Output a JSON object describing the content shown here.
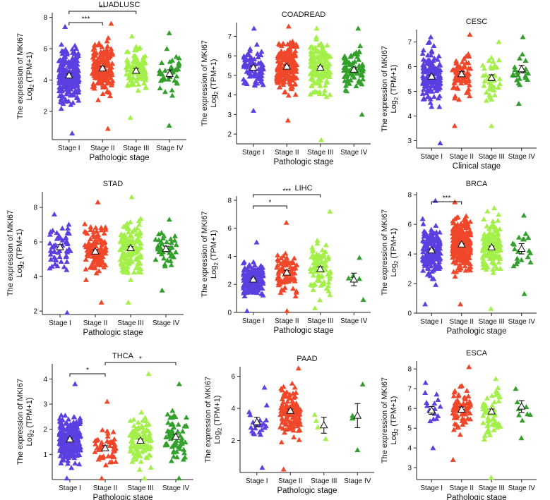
{
  "figure": {
    "stage_colors": [
      "#5b3fe0",
      "#f0472a",
      "#a4f04a",
      "#33a02c"
    ],
    "mean_marker_color": "#ffffff"
  },
  "chart_data": [
    {
      "type": "scatter",
      "title": "LUADLUSC",
      "xlabel": "Pathologic stage",
      "ylabel_main": "The expression of MKI67",
      "ylabel_sub_prefix": "Log",
      "ylabel_sub_index": "2",
      "ylabel_sub_suffix": " (TPM+1)",
      "categories": [
        "Stage I",
        "Stage II",
        "Stage III",
        "Stage IV"
      ],
      "ylim": [
        0.2,
        8.3
      ],
      "yticks": [
        2,
        4,
        6,
        8
      ],
      "n": [
        260,
        170,
        110,
        40
      ],
      "ranges": [
        [
          0.6,
          7.4
        ],
        [
          0.9,
          7.6
        ],
        [
          1.6,
          6.8
        ],
        [
          1.1,
          7.0
        ]
      ],
      "means": [
        4.3,
        4.75,
        4.6,
        4.4
      ],
      "errors": [
        0.1,
        0.12,
        0.15,
        0.25
      ],
      "significance": [
        {
          "from": 0,
          "to": 1,
          "label": "***",
          "level": 0
        },
        {
          "from": 0,
          "to": 2,
          "label": "**",
          "level": 1
        }
      ]
    },
    {
      "type": "scatter",
      "title": "COADREAD",
      "xlabel": "Pathologic stage",
      "ylabel_main": "The expression of MKI67",
      "ylabel_sub_prefix": "Log",
      "ylabel_sub_index": "2",
      "ylabel_sub_suffix": " (TPM+1)",
      "categories": [
        "Stage I",
        "Stage II",
        "Stage III",
        "Stage IV"
      ],
      "ylim": [
        1.5,
        7.7
      ],
      "yticks": [
        2,
        3,
        4,
        5,
        6,
        7
      ],
      "n": [
        90,
        200,
        150,
        80
      ],
      "ranges": [
        [
          3.2,
          7.4
        ],
        [
          2.7,
          7.5
        ],
        [
          1.7,
          7.4
        ],
        [
          3.0,
          7.4
        ]
      ],
      "means": [
        5.4,
        5.45,
        5.4,
        5.3
      ],
      "errors": [
        0.08,
        0.07,
        0.07,
        0.1
      ],
      "significance": []
    },
    {
      "type": "scatter",
      "title": "CESC",
      "xlabel": "Clinical stage",
      "ylabel_main": "The expression of MKI67",
      "ylabel_sub_prefix": "Log",
      "ylabel_sub_index": "2",
      "ylabel_sub_suffix": " (TPM+1)",
      "categories": [
        "Stage I",
        "Stage II",
        "Stage III",
        "Stage IV"
      ],
      "ylim": [
        2.7,
        7.5
      ],
      "yticks": [
        3,
        4,
        5,
        6,
        7
      ],
      "n": [
        160,
        70,
        45,
        22
      ],
      "ranges": [
        [
          2.9,
          7.2
        ],
        [
          3.6,
          7.3
        ],
        [
          3.6,
          7.0
        ],
        [
          4.5,
          7.2
        ]
      ],
      "means": [
        5.6,
        5.7,
        5.55,
        5.9
      ],
      "errors": [
        0.06,
        0.1,
        0.12,
        0.15
      ],
      "significance": []
    },
    {
      "type": "scatter",
      "title": "STAD",
      "xlabel": "Pathologic stage",
      "ylabel_main": "The expression of MKI67",
      "ylabel_sub_prefix": "Log",
      "ylabel_sub_index": "2",
      "ylabel_sub_suffix": " (TPM+1)",
      "categories": [
        "Stage I",
        "Stage II",
        "Stage III",
        "Stage IV"
      ],
      "ylim": [
        1.8,
        8.9
      ],
      "yticks": [
        2,
        4,
        6,
        8
      ],
      "n": [
        55,
        130,
        170,
        45
      ],
      "ranges": [
        [
          1.9,
          7.6
        ],
        [
          2.5,
          8.3
        ],
        [
          2.5,
          8.6
        ],
        [
          3.2,
          7.3
        ]
      ],
      "means": [
        5.7,
        5.45,
        5.65,
        5.6
      ],
      "errors": [
        0.15,
        0.1,
        0.08,
        0.15
      ],
      "significance": []
    },
    {
      "type": "scatter",
      "title": "LIHC",
      "xlabel": "Pathologic stage",
      "ylabel_main": "The expression of MKI67",
      "ylabel_sub_prefix": "Log",
      "ylabel_sub_index": "2",
      "ylabel_sub_suffix": " (TPM+1)",
      "categories": [
        "Stage I",
        "Stage II",
        "Stage III",
        "Stage IV"
      ],
      "ylim": [
        0,
        8.3
      ],
      "yticks": [
        0,
        2,
        4,
        6,
        8
      ],
      "n": [
        170,
        85,
        85,
        5
      ],
      "ranges": [
        [
          0.1,
          5.0
        ],
        [
          0.1,
          6.4
        ],
        [
          0.3,
          7.2
        ],
        [
          0.9,
          3.9
        ]
      ],
      "means": [
        2.35,
        2.85,
        3.1,
        2.35
      ],
      "errors": [
        0.1,
        0.15,
        0.15,
        0.45
      ],
      "significance": [
        {
          "from": 0,
          "to": 1,
          "label": "*",
          "level": 0
        },
        {
          "from": 0,
          "to": 2,
          "label": "***",
          "level": 1
        }
      ]
    },
    {
      "type": "scatter",
      "title": "BRCA",
      "xlabel": "Pathologic stage",
      "ylabel_main": "The expression of MKI67",
      "ylabel_sub_prefix": "Log",
      "ylabel_sub_index": "2",
      "ylabel_sub_suffix": " (TPM+1)",
      "categories": [
        "Stage I",
        "Stage II",
        "Stage III",
        "Stage IV"
      ],
      "ylim": [
        0,
        8.2
      ],
      "yticks": [
        0,
        2,
        4,
        6,
        8
      ],
      "n": [
        180,
        250,
        140,
        20
      ],
      "ranges": [
        [
          0.6,
          7.6
        ],
        [
          0.6,
          7.5
        ],
        [
          0.3,
          7.1
        ],
        [
          1.3,
          6.6
        ]
      ],
      "means": [
        4.25,
        4.65,
        4.45,
        4.35
      ],
      "errors": [
        0.08,
        0.06,
        0.08,
        0.35
      ],
      "significance": [
        {
          "from": 0,
          "to": 1,
          "label": "***",
          "level": 0
        }
      ]
    },
    {
      "type": "scatter",
      "title": "THCA",
      "xlabel": "Pathologic stage",
      "ylabel_main": "The expression of MKI67",
      "ylabel_sub_prefix": "Log",
      "ylabel_sub_index": "2",
      "ylabel_sub_suffix": " (TPM+1)",
      "categories": [
        "Stage I",
        "Stage II",
        "Stage III",
        "Stage IV"
      ],
      "ylim": [
        0,
        4.6
      ],
      "yticks": [
        1,
        2,
        3,
        4
      ],
      "n": [
        250,
        50,
        110,
        60
      ],
      "ranges": [
        [
          0.05,
          3.8
        ],
        [
          0.05,
          3.1
        ],
        [
          0.05,
          4.2
        ],
        [
          0.05,
          3.8
        ]
      ],
      "means": [
        1.6,
        1.25,
        1.55,
        1.7
      ],
      "errors": [
        0.05,
        0.1,
        0.06,
        0.1
      ],
      "significance": [
        {
          "from": 0,
          "to": 1,
          "label": "*",
          "level": 0
        },
        {
          "from": 1,
          "to": 3,
          "label": "*",
          "level": 1
        }
      ]
    },
    {
      "type": "scatter",
      "title": "PAAD",
      "xlabel": "Pathologic stage",
      "ylabel_main": "The expression of MKI67",
      "ylabel_sub_prefix": "Log",
      "ylabel_sub_index": "2",
      "ylabel_sub_suffix": " (TPM+1)",
      "categories": [
        "Stage I",
        "Stage II",
        "Stage III",
        "Stage IV"
      ],
      "ylim": [
        0,
        6.6
      ],
      "yticks": [
        2,
        4,
        6
      ],
      "n": [
        22,
        130,
        4,
        5
      ],
      "ranges": [
        [
          0.3,
          5.3
        ],
        [
          0.2,
          6.5
        ],
        [
          2.1,
          3.6
        ],
        [
          1.4,
          5.5
        ]
      ],
      "means": [
        3.15,
        3.85,
        2.95,
        3.55
      ],
      "errors": [
        0.3,
        0.1,
        0.5,
        0.75
      ],
      "significance": []
    },
    {
      "type": "scatter",
      "title": "ESCA",
      "xlabel": "Pathologic stage",
      "ylabel_main": "The expression of MKI67",
      "ylabel_sub_prefix": "Log",
      "ylabel_sub_index": "2",
      "ylabel_sub_suffix": " (TPM+1)",
      "categories": [
        "Stage I",
        "Stage II",
        "Stage III",
        "Stage IV"
      ],
      "ylim": [
        2.4,
        8.4
      ],
      "yticks": [
        3,
        4,
        5,
        6,
        7,
        8
      ],
      "n": [
        16,
        75,
        55,
        9
      ],
      "ranges": [
        [
          4.0,
          7.3
        ],
        [
          3.4,
          8.1
        ],
        [
          2.5,
          7.5
        ],
        [
          4.5,
          7.0
        ]
      ],
      "means": [
        5.9,
        5.95,
        5.85,
        6.1
      ],
      "errors": [
        0.2,
        0.12,
        0.12,
        0.3
      ],
      "significance": []
    }
  ]
}
